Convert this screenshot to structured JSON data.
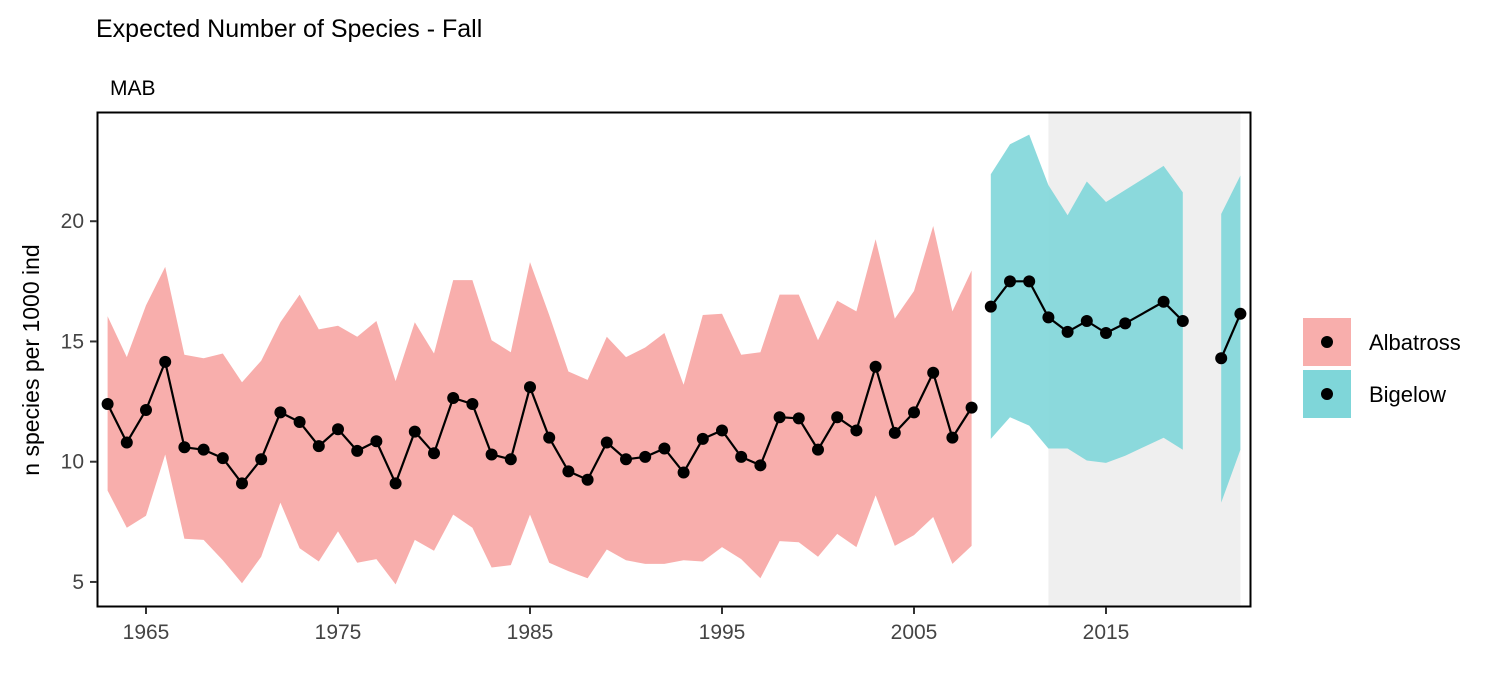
{
  "chart_data": {
    "type": "line",
    "title": "Expected Number of Species - Fall",
    "facet_label": "MAB",
    "xlabel": "",
    "ylabel": "n species per 1000 ind",
    "xlim": [
      1962.5,
      2022.5
    ],
    "ylim": [
      4.0,
      24.5
    ],
    "x_ticks": [
      1965,
      1975,
      1985,
      1995,
      2005,
      2015
    ],
    "y_ticks": [
      5,
      10,
      15,
      20
    ],
    "grid": false,
    "legend_position": "right",
    "shaded_region": {
      "x_start": 2012,
      "x_end": 2022,
      "color": "#efefef"
    },
    "series": [
      {
        "name": "Albatross",
        "ribbon_color": "#f8aeac",
        "x": [
          1963,
          1964,
          1965,
          1966,
          1967,
          1968,
          1969,
          1970,
          1971,
          1972,
          1973,
          1974,
          1975,
          1976,
          1977,
          1978,
          1979,
          1980,
          1981,
          1982,
          1983,
          1984,
          1985,
          1986,
          1987,
          1988,
          1989,
          1990,
          1991,
          1992,
          1993,
          1994,
          1995,
          1996,
          1997,
          1998,
          1999,
          2000,
          2001,
          2002,
          2003,
          2004,
          2005,
          2006,
          2007,
          2008
        ],
        "y": [
          12.4,
          10.8,
          12.15,
          14.15,
          10.6,
          10.5,
          10.15,
          9.1,
          10.1,
          12.05,
          11.65,
          10.65,
          11.35,
          10.45,
          10.85,
          9.1,
          11.25,
          10.35,
          12.65,
          12.4,
          10.3,
          10.1,
          13.1,
          11.0,
          9.6,
          9.25,
          10.8,
          10.1,
          10.2,
          10.55,
          9.55,
          10.95,
          11.3,
          10.2,
          9.85,
          11.85,
          11.8,
          10.5,
          11.85,
          11.3,
          13.95,
          11.2,
          12.05,
          13.7,
          11.0,
          12.25
        ],
        "lower": [
          8.8,
          7.25,
          7.75,
          10.3,
          6.8,
          6.75,
          5.9,
          4.95,
          6.05,
          8.3,
          6.4,
          5.85,
          7.1,
          5.8,
          5.95,
          4.9,
          6.75,
          6.3,
          7.8,
          7.25,
          5.6,
          5.7,
          7.8,
          5.8,
          5.45,
          5.15,
          6.35,
          5.9,
          5.75,
          5.75,
          5.9,
          5.85,
          6.45,
          5.95,
          5.15,
          6.7,
          6.65,
          6.05,
          7.0,
          6.45,
          8.6,
          6.5,
          6.95,
          7.7,
          5.75,
          6.5
        ],
        "upper": [
          16.05,
          14.35,
          16.5,
          18.1,
          14.45,
          14.3,
          14.5,
          13.3,
          14.2,
          15.8,
          16.95,
          15.5,
          15.65,
          15.2,
          15.85,
          13.35,
          15.8,
          14.5,
          17.55,
          17.55,
          15.05,
          14.55,
          18.3,
          16.1,
          13.75,
          13.4,
          15.2,
          14.35,
          14.75,
          15.35,
          13.2,
          16.1,
          16.15,
          14.45,
          14.55,
          16.95,
          16.95,
          15.05,
          16.7,
          16.25,
          19.25,
          15.95,
          17.1,
          19.8,
          16.25,
          17.95
        ]
      },
      {
        "name": "Bigelow",
        "ribbon_color": "#7fd6d9",
        "segments": [
          {
            "x": [
              2009,
              2010,
              2011,
              2012,
              2013,
              2014,
              2015,
              2016,
              2018,
              2019
            ],
            "y": [
              16.45,
              17.5,
              17.5,
              16.0,
              15.4,
              15.85,
              15.35,
              15.75,
              16.65,
              15.85
            ],
            "lower": [
              10.95,
              11.85,
              11.5,
              10.55,
              10.55,
              10.05,
              9.95,
              10.25,
              11.0,
              10.5
            ],
            "upper": [
              21.95,
              23.2,
              23.6,
              21.5,
              20.25,
              21.65,
              20.8,
              21.3,
              22.3,
              21.2
            ]
          },
          {
            "x": [
              2021,
              2022
            ],
            "y": [
              14.3,
              16.15
            ],
            "lower": [
              8.3,
              10.5
            ],
            "upper": [
              20.3,
              21.9
            ]
          }
        ]
      }
    ]
  }
}
